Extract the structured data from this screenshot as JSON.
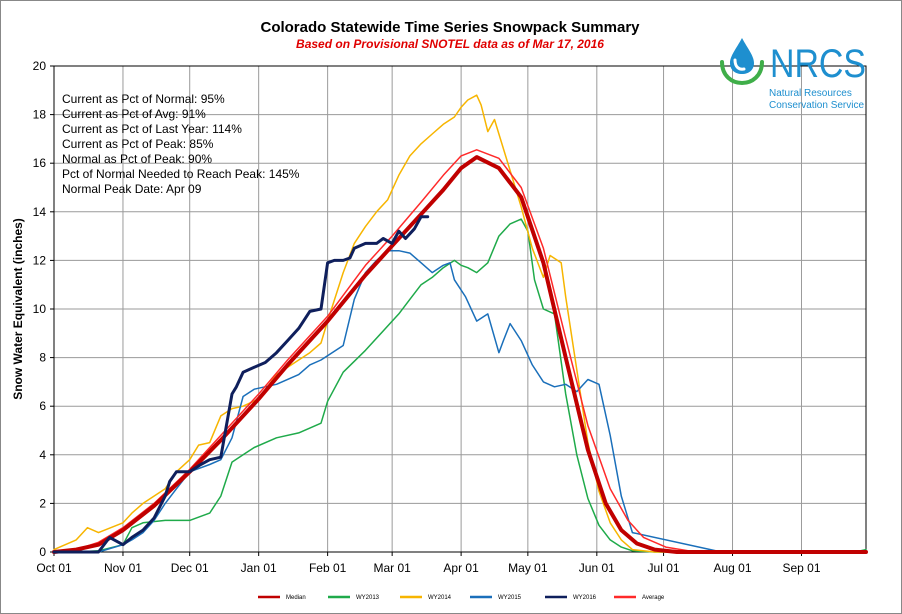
{
  "chart_data": {
    "type": "line",
    "title": "Colorado Statewide Time Series Snowpack Summary",
    "subtitle": "Based on Provisional SNOTEL data as of Mar 17, 2016",
    "xlabel": "",
    "ylabel": "Snow Water Equivalent (inches)",
    "ylim": [
      0,
      20
    ],
    "yticks": [
      0,
      2,
      4,
      6,
      8,
      10,
      12,
      14,
      16,
      18,
      20
    ],
    "xlim": [
      0,
      365
    ],
    "xticks": [
      {
        "label": "Oct 01",
        "day": 0
      },
      {
        "label": "Nov 01",
        "day": 31
      },
      {
        "label": "Dec 01",
        "day": 61
      },
      {
        "label": "Jan 01",
        "day": 92
      },
      {
        "label": "Feb 01",
        "day": 123
      },
      {
        "label": "Mar 01",
        "day": 152
      },
      {
        "label": "Apr 01",
        "day": 183
      },
      {
        "label": "May 01",
        "day": 213
      },
      {
        "label": "Jun 01",
        "day": 244
      },
      {
        "label": "Jul 01",
        "day": 274
      },
      {
        "label": "Aug 01",
        "day": 305
      },
      {
        "label": "Sep 01",
        "day": 336
      }
    ],
    "grid": true,
    "legend_position": "bottom",
    "stats": [
      "Current  as Pct of Normal: 95%",
      "Current  as Pct of Avg: 91%",
      "Current  as Pct of Last Year: 114%",
      "Current  as Pct of Peak: 85%",
      "Normal  as Pct of Peak: 90%",
      "Pct of Normal Needed  to Reach Peak: 145%",
      "Normal Peak Date: Apr 09"
    ],
    "series": [
      {
        "name": "Median",
        "color": "#c00000",
        "width": 4,
        "x": [
          0,
          10,
          20,
          31,
          45,
          61,
          75,
          92,
          105,
          123,
          140,
          152,
          165,
          175,
          183,
          190,
          200,
          210,
          220,
          230,
          240,
          248,
          255,
          262,
          270,
          280,
          300,
          365
        ],
        "y": [
          0,
          0.1,
          0.3,
          0.9,
          1.9,
          3.3,
          4.6,
          6.3,
          7.7,
          9.5,
          11.4,
          12.6,
          13.9,
          14.9,
          15.8,
          16.25,
          15.8,
          14.6,
          11.9,
          8.0,
          4.2,
          2.0,
          0.9,
          0.35,
          0.1,
          0,
          0,
          0
        ]
      },
      {
        "name": "WY2013",
        "color": "#1faa4a",
        "width": 1.5,
        "x": [
          0,
          10,
          20,
          31,
          35,
          40,
          50,
          61,
          70,
          75,
          80,
          85,
          90,
          100,
          110,
          120,
          123,
          130,
          140,
          150,
          155,
          160,
          165,
          170,
          175,
          180,
          183,
          186,
          190,
          195,
          200,
          205,
          210,
          213,
          216,
          220,
          225,
          230,
          235,
          240,
          245,
          250,
          255,
          260,
          270,
          300,
          360,
          365
        ],
        "y": [
          0,
          0,
          0.05,
          0.3,
          1.0,
          1.2,
          1.3,
          1.3,
          1.6,
          2.3,
          3.7,
          4.0,
          4.3,
          4.7,
          4.9,
          5.3,
          6.2,
          7.4,
          8.3,
          9.3,
          9.8,
          10.4,
          11.0,
          11.3,
          11.7,
          12.0,
          11.8,
          11.7,
          11.5,
          11.9,
          13.0,
          13.5,
          13.7,
          13.2,
          11.2,
          10.0,
          9.8,
          6.5,
          4.0,
          2.2,
          1.1,
          0.5,
          0.2,
          0.05,
          0,
          0,
          0,
          0.1
        ]
      },
      {
        "name": "WY2014",
        "color": "#f7b500",
        "width": 1.5,
        "x": [
          0,
          10,
          15,
          20,
          31,
          35,
          40,
          50,
          55,
          61,
          65,
          70,
          75,
          80,
          85,
          92,
          100,
          110,
          115,
          120,
          123,
          130,
          135,
          140,
          145,
          150,
          155,
          160,
          165,
          170,
          175,
          180,
          183,
          186,
          190,
          192,
          195,
          198,
          200,
          205,
          210,
          215,
          220,
          223,
          228,
          230,
          235,
          240,
          245,
          250,
          255,
          260,
          270,
          300,
          365
        ],
        "y": [
          0.1,
          0.5,
          1.0,
          0.8,
          1.2,
          1.6,
          2.0,
          2.6,
          3.3,
          3.8,
          4.4,
          4.5,
          5.6,
          5.9,
          6.0,
          6.3,
          7.3,
          7.9,
          8.2,
          8.6,
          9.5,
          11.5,
          12.7,
          13.4,
          14.0,
          14.5,
          15.5,
          16.3,
          16.8,
          17.2,
          17.6,
          17.9,
          18.3,
          18.6,
          18.8,
          18.4,
          17.3,
          17.8,
          17.2,
          15.7,
          14.2,
          12.5,
          11.3,
          12.2,
          11.9,
          10.5,
          7.5,
          4.5,
          2.5,
          1.2,
          0.5,
          0.1,
          0,
          0,
          0
        ]
      },
      {
        "name": "WY2015",
        "color": "#1a6fba",
        "width": 1.5,
        "x": [
          0,
          20,
          31,
          35,
          40,
          45,
          50,
          55,
          61,
          70,
          75,
          80,
          85,
          90,
          100,
          110,
          115,
          120,
          125,
          130,
          135,
          140,
          145,
          150,
          155,
          160,
          165,
          170,
          175,
          178,
          180,
          185,
          190,
          195,
          200,
          202,
          205,
          210,
          215,
          220,
          225,
          230,
          235,
          240,
          245,
          250,
          255,
          260,
          300,
          365
        ],
        "y": [
          0,
          0,
          0.3,
          0.5,
          0.8,
          1.3,
          2.0,
          2.6,
          3.3,
          3.6,
          3.8,
          4.7,
          6.4,
          6.7,
          6.9,
          7.3,
          7.7,
          7.9,
          8.2,
          8.5,
          10.4,
          11.5,
          12.0,
          12.4,
          12.4,
          12.3,
          11.9,
          11.5,
          11.8,
          11.9,
          11.2,
          10.5,
          9.5,
          9.8,
          8.2,
          8.7,
          9.4,
          8.7,
          7.7,
          7.0,
          6.8,
          6.9,
          6.6,
          7.1,
          6.9,
          4.8,
          2.3,
          0.8,
          0,
          0
        ]
      },
      {
        "name": "WY2016",
        "color": "#0f1f5c",
        "width": 3,
        "x": [
          0,
          10,
          20,
          25,
          31,
          35,
          40,
          45,
          50,
          52,
          55,
          61,
          66,
          70,
          75,
          80,
          82,
          85,
          90,
          95,
          100,
          105,
          110,
          115,
          120,
          123,
          126,
          130,
          133,
          135,
          140,
          145,
          148,
          152,
          155,
          158,
          162,
          165,
          168
        ],
        "y": [
          0,
          0,
          0,
          0.6,
          0.3,
          0.6,
          0.9,
          1.4,
          2.3,
          2.9,
          3.3,
          3.3,
          3.6,
          3.8,
          3.9,
          6.5,
          6.8,
          7.4,
          7.6,
          7.8,
          8.2,
          8.7,
          9.2,
          9.9,
          10.0,
          11.9,
          12.0,
          12.0,
          12.1,
          12.5,
          12.7,
          12.7,
          12.9,
          12.7,
          13.2,
          12.9,
          13.3,
          13.8,
          13.8
        ]
      },
      {
        "name": "Average",
        "color": "#ff2a2a",
        "width": 1.5,
        "x": [
          0,
          10,
          20,
          31,
          45,
          61,
          75,
          92,
          105,
          123,
          140,
          152,
          165,
          175,
          183,
          190,
          200,
          210,
          220,
          230,
          240,
          250,
          258,
          265,
          275,
          285,
          300,
          365
        ],
        "y": [
          0,
          0.1,
          0.4,
          1.0,
          2.0,
          3.4,
          4.8,
          6.5,
          7.9,
          9.7,
          11.8,
          13.0,
          14.4,
          15.5,
          16.3,
          16.55,
          16.2,
          15.0,
          12.5,
          8.8,
          5.2,
          2.6,
          1.3,
          0.6,
          0.2,
          0.05,
          0,
          0
        ]
      }
    ]
  }
}
